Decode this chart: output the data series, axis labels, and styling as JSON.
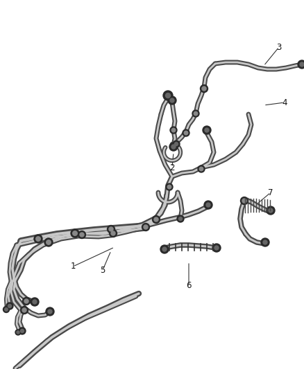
{
  "background_color": "#ffffff",
  "fig_width": 4.38,
  "fig_height": 5.33,
  "dpi": 100,
  "label_fontsize": 8.5,
  "hose_color": "#4a4a4a",
  "hose_lw_outer": 5.0,
  "hose_lw_inner": 2.5,
  "hose_inner_color": "#c8c8c8",
  "clamp_color": "#2a2a2a",
  "connector_color": "#2a2a2a",
  "label_color": "#111111",
  "arrow_color": "#333333"
}
